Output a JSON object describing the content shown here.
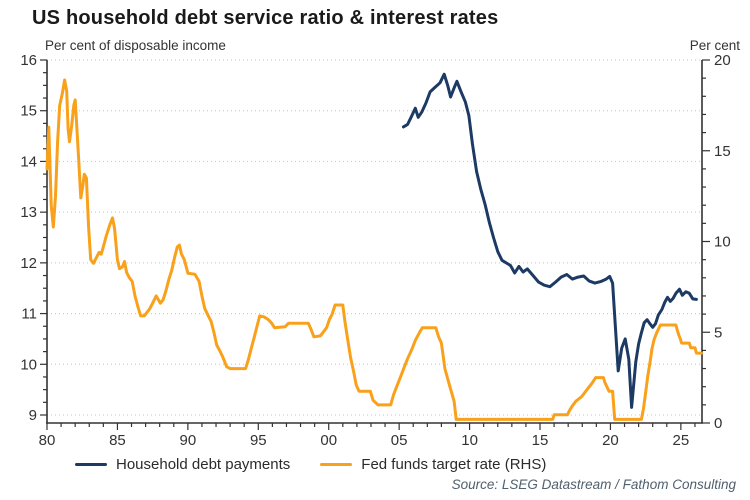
{
  "header": {
    "title": "US household debt service ratio & interest rates",
    "ylabel_left": "Per cent of disposable income",
    "ylabel_right": "Per cent"
  },
  "legend": [
    {
      "label": "Household debt payments",
      "color": "#1c3a64"
    },
    {
      "label": "Fed funds target rate (RHS)",
      "color": "#f9a11b"
    }
  ],
  "source": "Source: LSEG Datastream / Fathom Consulting",
  "colors": {
    "navy": "#1c3a64",
    "orange": "#f9a11b",
    "grid": "#c4c4c4",
    "axis": "#333333"
  },
  "chart_data": {
    "type": "line",
    "title": "US household debt service ratio & interest rates",
    "xlabel": "",
    "ylabel_left": "Per cent of disposable income",
    "ylabel_right": "Per cent",
    "grid": "dotted horizontal lines at each left-axis integer",
    "legend_position": "bottom",
    "x_axis": {
      "min": 1980,
      "max": 2026.5,
      "major_tick_step": 5,
      "minor_tick_step": 1,
      "tick_years": [
        1980,
        1985,
        1990,
        1995,
        2000,
        2005,
        2010,
        2015,
        2020,
        2025
      ],
      "tick_labels": [
        "80",
        "85",
        "90",
        "95",
        "00",
        "05",
        "10",
        "15",
        "20",
        "25"
      ]
    },
    "y_axis_left": {
      "min": 9,
      "max": 16,
      "major_tick_step": 1,
      "minor_tick_step": 0.25,
      "tick_labels": [
        "9",
        "10",
        "11",
        "12",
        "13",
        "14",
        "15",
        "16"
      ]
    },
    "y_axis_right": {
      "min": 0,
      "max": 20,
      "major_tick_step": 5,
      "minor_tick_step": 1,
      "tick_labels": [
        "0",
        "5",
        "10",
        "15",
        "20"
      ]
    },
    "series": [
      {
        "name": "Fed funds target rate (RHS)",
        "axis": "right",
        "color": "#f9a11b",
        "points": [
          [
            1980.0,
            14.0
          ],
          [
            1980.13,
            16.3
          ],
          [
            1980.3,
            12.0
          ],
          [
            1980.45,
            10.8
          ],
          [
            1980.6,
            12.5
          ],
          [
            1980.75,
            15.5
          ],
          [
            1980.9,
            17.5
          ],
          [
            1981.1,
            18.2
          ],
          [
            1981.25,
            18.9
          ],
          [
            1981.4,
            18.3
          ],
          [
            1981.5,
            16.2
          ],
          [
            1981.6,
            15.5
          ],
          [
            1981.75,
            16.4
          ],
          [
            1981.9,
            17.5
          ],
          [
            1982.0,
            17.8
          ],
          [
            1982.1,
            16.5
          ],
          [
            1982.25,
            14.5
          ],
          [
            1982.4,
            12.4
          ],
          [
            1982.55,
            13.1
          ],
          [
            1982.65,
            13.7
          ],
          [
            1982.8,
            13.5
          ],
          [
            1982.95,
            10.8
          ],
          [
            1983.1,
            9.0
          ],
          [
            1983.3,
            8.8
          ],
          [
            1983.5,
            9.1
          ],
          [
            1983.7,
            9.4
          ],
          [
            1983.85,
            9.3
          ],
          [
            1984.0,
            9.7
          ],
          [
            1984.2,
            10.3
          ],
          [
            1984.45,
            10.9
          ],
          [
            1984.65,
            11.3
          ],
          [
            1984.8,
            10.7
          ],
          [
            1985.0,
            9.0
          ],
          [
            1985.15,
            8.5
          ],
          [
            1985.35,
            8.6
          ],
          [
            1985.5,
            8.9
          ],
          [
            1985.65,
            8.3
          ],
          [
            1985.85,
            8.0
          ],
          [
            1986.05,
            7.8
          ],
          [
            1986.25,
            7.0
          ],
          [
            1986.45,
            6.4
          ],
          [
            1986.65,
            5.9
          ],
          [
            1986.9,
            5.9
          ],
          [
            1987.1,
            6.1
          ],
          [
            1987.3,
            6.3
          ],
          [
            1987.5,
            6.6
          ],
          [
            1987.75,
            7.0
          ],
          [
            1987.9,
            6.8
          ],
          [
            1988.05,
            6.6
          ],
          [
            1988.25,
            6.8
          ],
          [
            1988.45,
            7.3
          ],
          [
            1988.65,
            7.9
          ],
          [
            1988.85,
            8.4
          ],
          [
            1989.05,
            9.1
          ],
          [
            1989.25,
            9.7
          ],
          [
            1989.4,
            9.8
          ],
          [
            1989.55,
            9.3
          ],
          [
            1989.75,
            9.0
          ],
          [
            1990.0,
            8.25
          ],
          [
            1990.5,
            8.2
          ],
          [
            1990.8,
            7.8
          ],
          [
            1991.0,
            7.0
          ],
          [
            1991.2,
            6.3
          ],
          [
            1991.45,
            5.9
          ],
          [
            1991.65,
            5.6
          ],
          [
            1991.85,
            5.0
          ],
          [
            1992.05,
            4.3
          ],
          [
            1992.25,
            4.0
          ],
          [
            1992.5,
            3.6
          ],
          [
            1992.75,
            3.1
          ],
          [
            1993.0,
            3.0
          ],
          [
            1994.1,
            3.0
          ],
          [
            1994.3,
            3.5
          ],
          [
            1994.5,
            4.1
          ],
          [
            1994.7,
            4.7
          ],
          [
            1994.9,
            5.3
          ],
          [
            1995.1,
            5.9
          ],
          [
            1995.4,
            5.85
          ],
          [
            1995.7,
            5.7
          ],
          [
            1995.95,
            5.5
          ],
          [
            1996.15,
            5.25
          ],
          [
            1996.9,
            5.3
          ],
          [
            1997.15,
            5.5
          ],
          [
            1998.55,
            5.5
          ],
          [
            1998.75,
            5.15
          ],
          [
            1998.95,
            4.75
          ],
          [
            1999.4,
            4.8
          ],
          [
            1999.6,
            5.0
          ],
          [
            1999.85,
            5.25
          ],
          [
            2000.05,
            5.7
          ],
          [
            2000.25,
            6.0
          ],
          [
            2000.45,
            6.5
          ],
          [
            2001.0,
            6.5
          ],
          [
            2001.15,
            5.6
          ],
          [
            2001.35,
            4.6
          ],
          [
            2001.55,
            3.6
          ],
          [
            2001.75,
            2.9
          ],
          [
            2001.95,
            2.1
          ],
          [
            2002.15,
            1.75
          ],
          [
            2002.95,
            1.75
          ],
          [
            2003.15,
            1.25
          ],
          [
            2003.5,
            1.0
          ],
          [
            2004.4,
            1.0
          ],
          [
            2004.6,
            1.55
          ],
          [
            2004.85,
            2.05
          ],
          [
            2005.1,
            2.55
          ],
          [
            2005.35,
            3.05
          ],
          [
            2005.6,
            3.55
          ],
          [
            2005.9,
            4.05
          ],
          [
            2006.15,
            4.55
          ],
          [
            2006.45,
            5.0
          ],
          [
            2006.65,
            5.25
          ],
          [
            2007.6,
            5.25
          ],
          [
            2007.8,
            4.75
          ],
          [
            2008.0,
            4.4
          ],
          [
            2008.25,
            3.0
          ],
          [
            2008.6,
            2.0
          ],
          [
            2008.9,
            1.2
          ],
          [
            2009.05,
            0.2
          ],
          [
            2015.9,
            0.2
          ],
          [
            2016.0,
            0.45
          ],
          [
            2016.95,
            0.45
          ],
          [
            2017.1,
            0.7
          ],
          [
            2017.3,
            0.95
          ],
          [
            2017.55,
            1.2
          ],
          [
            2017.95,
            1.45
          ],
          [
            2018.2,
            1.7
          ],
          [
            2018.45,
            1.95
          ],
          [
            2018.7,
            2.2
          ],
          [
            2018.95,
            2.5
          ],
          [
            2019.5,
            2.5
          ],
          [
            2019.6,
            2.25
          ],
          [
            2019.75,
            2.0
          ],
          [
            2019.9,
            1.75
          ],
          [
            2020.15,
            1.75
          ],
          [
            2020.3,
            0.2
          ],
          [
            2022.2,
            0.2
          ],
          [
            2022.35,
            0.8
          ],
          [
            2022.5,
            1.7
          ],
          [
            2022.65,
            2.6
          ],
          [
            2022.8,
            3.3
          ],
          [
            2022.95,
            4.1
          ],
          [
            2023.1,
            4.6
          ],
          [
            2023.3,
            5.0
          ],
          [
            2023.55,
            5.4
          ],
          [
            2024.65,
            5.4
          ],
          [
            2024.75,
            5.1
          ],
          [
            2024.85,
            4.85
          ],
          [
            2024.95,
            4.65
          ],
          [
            2025.05,
            4.4
          ],
          [
            2025.6,
            4.4
          ],
          [
            2025.7,
            4.15
          ],
          [
            2026.0,
            4.15
          ],
          [
            2026.1,
            3.85
          ],
          [
            2026.45,
            3.85
          ]
        ]
      },
      {
        "name": "Household debt payments",
        "axis": "left",
        "color": "#1c3a64",
        "points": [
          [
            2005.3,
            14.68
          ],
          [
            2005.6,
            14.73
          ],
          [
            2005.9,
            14.9
          ],
          [
            2006.15,
            15.05
          ],
          [
            2006.35,
            14.87
          ],
          [
            2006.6,
            14.97
          ],
          [
            2006.9,
            15.15
          ],
          [
            2007.2,
            15.37
          ],
          [
            2007.5,
            15.45
          ],
          [
            2007.9,
            15.55
          ],
          [
            2008.2,
            15.72
          ],
          [
            2008.45,
            15.5
          ],
          [
            2008.65,
            15.27
          ],
          [
            2008.9,
            15.45
          ],
          [
            2009.1,
            15.58
          ],
          [
            2009.4,
            15.37
          ],
          [
            2009.7,
            15.17
          ],
          [
            2009.95,
            14.9
          ],
          [
            2010.2,
            14.35
          ],
          [
            2010.5,
            13.8
          ],
          [
            2010.8,
            13.45
          ],
          [
            2011.1,
            13.15
          ],
          [
            2011.4,
            12.8
          ],
          [
            2011.7,
            12.5
          ],
          [
            2012.0,
            12.22
          ],
          [
            2012.3,
            12.05
          ],
          [
            2012.6,
            12.0
          ],
          [
            2012.9,
            11.95
          ],
          [
            2013.2,
            11.8
          ],
          [
            2013.5,
            11.93
          ],
          [
            2013.8,
            11.82
          ],
          [
            2014.1,
            11.88
          ],
          [
            2014.5,
            11.75
          ],
          [
            2014.9,
            11.62
          ],
          [
            2015.3,
            11.56
          ],
          [
            2015.7,
            11.53
          ],
          [
            2016.1,
            11.62
          ],
          [
            2016.5,
            11.72
          ],
          [
            2016.9,
            11.77
          ],
          [
            2017.3,
            11.68
          ],
          [
            2017.7,
            11.72
          ],
          [
            2018.1,
            11.74
          ],
          [
            2018.5,
            11.64
          ],
          [
            2018.9,
            11.6
          ],
          [
            2019.3,
            11.63
          ],
          [
            2019.7,
            11.68
          ],
          [
            2019.95,
            11.73
          ],
          [
            2020.15,
            11.6
          ],
          [
            2020.55,
            9.87
          ],
          [
            2020.8,
            10.32
          ],
          [
            2021.05,
            10.5
          ],
          [
            2021.3,
            10.1
          ],
          [
            2021.5,
            9.15
          ],
          [
            2021.8,
            10.05
          ],
          [
            2022.0,
            10.4
          ],
          [
            2022.2,
            10.62
          ],
          [
            2022.4,
            10.82
          ],
          [
            2022.6,
            10.88
          ],
          [
            2022.8,
            10.8
          ],
          [
            2023.0,
            10.73
          ],
          [
            2023.2,
            10.8
          ],
          [
            2023.4,
            10.97
          ],
          [
            2023.65,
            11.08
          ],
          [
            2023.85,
            11.22
          ],
          [
            2024.05,
            11.32
          ],
          [
            2024.25,
            11.24
          ],
          [
            2024.45,
            11.3
          ],
          [
            2024.65,
            11.4
          ],
          [
            2024.9,
            11.48
          ],
          [
            2025.1,
            11.36
          ],
          [
            2025.35,
            11.43
          ],
          [
            2025.6,
            11.4
          ],
          [
            2025.85,
            11.29
          ],
          [
            2026.1,
            11.28
          ]
        ]
      }
    ]
  }
}
